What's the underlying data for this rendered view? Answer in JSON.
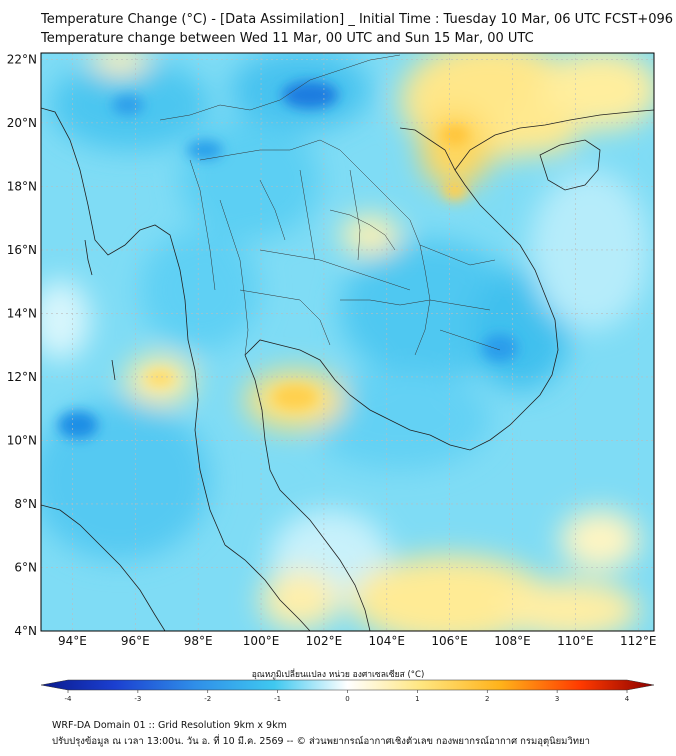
{
  "header": {
    "title_line1": "Temperature Change (°C) - [Data Assimilation] _ Initial Time : Tuesday 10 Mar, 06 UTC FCST+096",
    "title_line2": "Temperature change between Wed 11 Mar, 00 UTC and Sun 15 Mar, 00 UTC"
  },
  "map": {
    "lat_labels": [
      "4°N",
      "6°N",
      "8°N",
      "10°N",
      "12°N",
      "14°N",
      "16°N",
      "18°N",
      "20°N",
      "22°N"
    ],
    "lon_labels": [
      "94°E",
      "96°E",
      "98°E",
      "100°E",
      "102°E",
      "104°E",
      "106°E",
      "108°E",
      "110°E",
      "112°E"
    ],
    "lat_range": [
      4,
      22.2
    ],
    "lon_range": [
      93,
      112.5
    ]
  },
  "colorbar": {
    "label": "อุณหภูมิเปลี่ยนแปลง หน่วย องศาเซลเซียส (°C)",
    "ticks": [
      "-4",
      "-3",
      "-2",
      "-1",
      "0",
      "1",
      "2",
      "3",
      "4"
    ],
    "range": [
      -4,
      4
    ],
    "colors": {
      "very_cold": "#0a1a8c",
      "cold": "#2f6fe0",
      "cool": "#3fc8f0",
      "neutral": "#ffffff",
      "warm": "#ffe680",
      "hot": "#ff6a00",
      "very_hot": "#8a0000"
    }
  },
  "footer": {
    "line1": "WRF-DA Domain 01 :: Grid Resolution 9km x 9km",
    "line2": "ปรับปรุงข้อมูล ณ เวลา 13:00น. วัน อ. ที่ 10 มี.ค. 2569 -- © ส่วนพยากรณ์อากาศเชิงตัวเลข กองพยากรณ์อากาศ กรมอุตุนิยมวิทยา"
  }
}
